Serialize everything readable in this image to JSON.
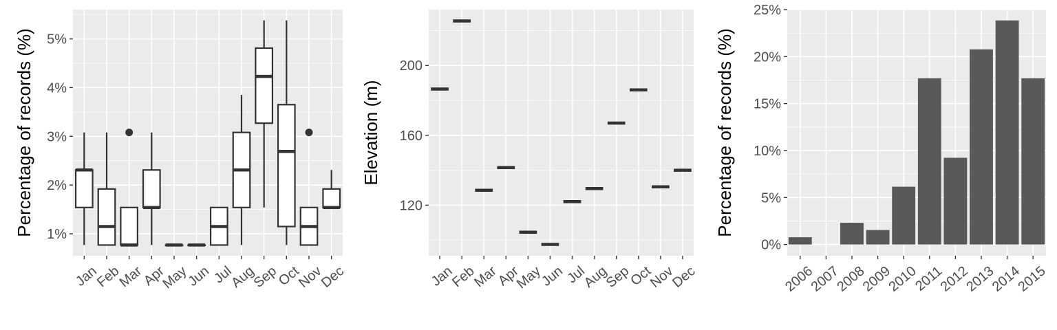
{
  "chart_data": [
    {
      "type": "box",
      "ylabel": "Percentage of records (%)",
      "xlabel": "",
      "categories": [
        "Jan",
        "Feb",
        "Mar",
        "Apr",
        "May",
        "Jun",
        "Jul",
        "Aug",
        "Sep",
        "Oct",
        "Nov",
        "Dec"
      ],
      "ylim": [
        0.55,
        5.6
      ],
      "yticks": [
        1,
        2,
        3,
        4,
        5
      ],
      "ytick_labels": [
        "1%",
        "2%",
        "3%",
        "4%",
        "5%"
      ],
      "boxes": [
        {
          "min": 0.77,
          "q1": 1.54,
          "median": 2.31,
          "q3": 2.31,
          "max": 3.08,
          "outliers": []
        },
        {
          "min": 0.77,
          "q1": 0.77,
          "median": 1.15,
          "q3": 1.92,
          "max": 3.08,
          "outliers": []
        },
        {
          "min": 0.77,
          "q1": 0.77,
          "median": 0.77,
          "q3": 1.54,
          "max": 1.54,
          "outliers": [
            3.08
          ]
        },
        {
          "min": 0.77,
          "q1": 1.54,
          "median": 1.54,
          "q3": 2.31,
          "max": 3.08,
          "outliers": []
        },
        {
          "min": 0.77,
          "q1": 0.77,
          "median": 0.77,
          "q3": 0.77,
          "max": 0.77,
          "outliers": []
        },
        {
          "min": 0.77,
          "q1": 0.77,
          "median": 0.77,
          "q3": 0.77,
          "max": 0.77,
          "outliers": []
        },
        {
          "min": 0.77,
          "q1": 0.77,
          "median": 1.15,
          "q3": 1.54,
          "max": 1.54,
          "outliers": []
        },
        {
          "min": 0.77,
          "q1": 1.54,
          "median": 2.31,
          "q3": 3.08,
          "max": 3.85,
          "outliers": []
        },
        {
          "min": 1.54,
          "q1": 3.27,
          "median": 4.23,
          "q3": 4.81,
          "max": 5.38,
          "outliers": []
        },
        {
          "min": 0.77,
          "q1": 1.15,
          "median": 2.69,
          "q3": 3.65,
          "max": 5.38,
          "outliers": []
        },
        {
          "min": 0.77,
          "q1": 0.77,
          "median": 1.15,
          "q3": 1.54,
          "max": 1.54,
          "outliers": [
            3.08
          ]
        },
        {
          "min": 1.54,
          "q1": 1.54,
          "median": 1.54,
          "q3": 1.92,
          "max": 2.31,
          "outliers": []
        }
      ],
      "grid": true
    },
    {
      "type": "point",
      "ylabel": "Elevation (m)",
      "xlabel": "",
      "categories": [
        "Jan",
        "Feb",
        "Mar",
        "Apr",
        "May",
        "Jun",
        "Jul",
        "Aug",
        "Sep",
        "Oct",
        "Nov",
        "Dec"
      ],
      "values": [
        186.5,
        225.5,
        128.5,
        141.5,
        104.5,
        97.5,
        122.0,
        129.5,
        167.0,
        186.0,
        130.5,
        140.0
      ],
      "ylim": [
        91,
        232
      ],
      "yticks": [
        120,
        160,
        200
      ],
      "ytick_labels": [
        "120",
        "160",
        "200"
      ],
      "grid": true
    },
    {
      "type": "bar",
      "ylabel": "Percentage of records (%)",
      "xlabel": "",
      "categories": [
        "2006",
        "2007",
        "2008",
        "2009",
        "2010",
        "2011",
        "2012",
        "2013",
        "2014",
        "2015"
      ],
      "values": [
        0.77,
        0,
        2.31,
        1.54,
        6.15,
        17.69,
        9.23,
        20.77,
        23.85,
        17.69
      ],
      "ylim": [
        -1.2,
        25.0
      ],
      "yticks": [
        0,
        5,
        10,
        15,
        20,
        25
      ],
      "ytick_labels": [
        "0%",
        "5%",
        "10%",
        "15%",
        "20%",
        "25%"
      ],
      "grid": true
    }
  ]
}
